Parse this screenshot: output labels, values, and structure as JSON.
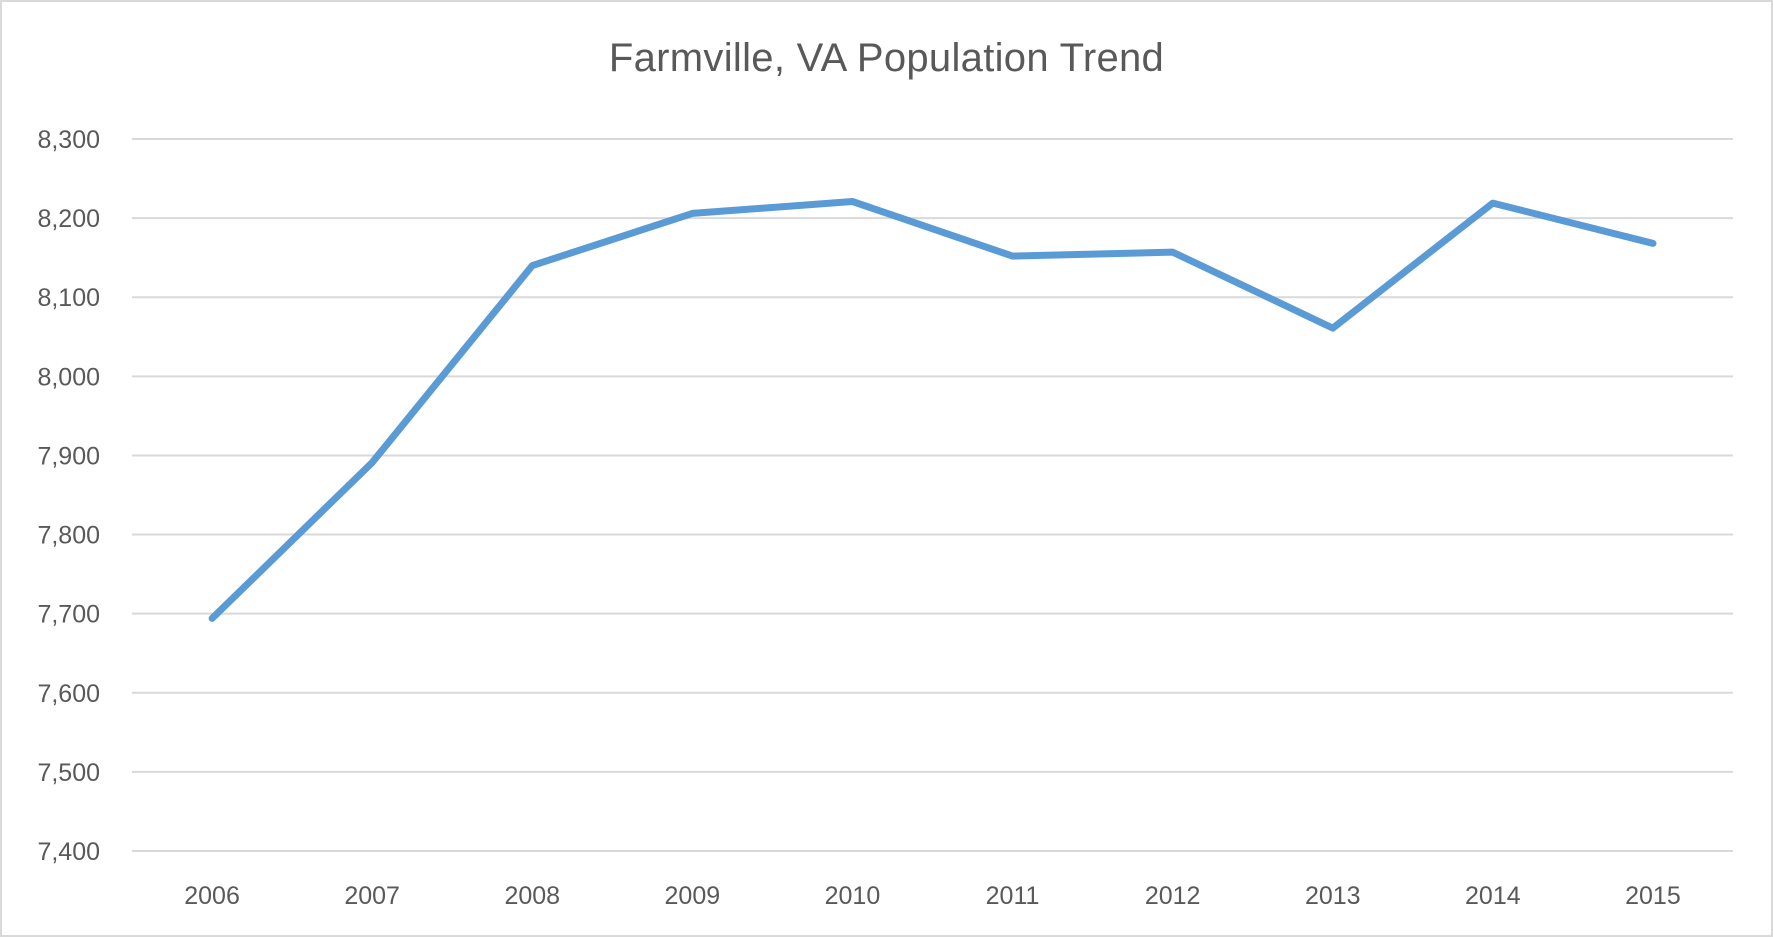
{
  "chart_data": {
    "type": "line",
    "title": "Farmville, VA Population Trend",
    "xlabel": "",
    "ylabel": "",
    "categories": [
      "2006",
      "2007",
      "2008",
      "2009",
      "2010",
      "2011",
      "2012",
      "2013",
      "2014",
      "2015"
    ],
    "series": [
      {
        "name": "Population",
        "color": "#5b9bd5",
        "values": [
          7694,
          7891,
          8140,
          8206,
          8221,
          8152,
          8157,
          8061,
          8219,
          8168
        ]
      }
    ],
    "ylim": [
      7400,
      8300
    ],
    "yticks": [
      7400,
      7500,
      7600,
      7700,
      7800,
      7900,
      8000,
      8100,
      8200,
      8300
    ],
    "ytick_labels": [
      "7,400",
      "7,500",
      "7,600",
      "7,700",
      "7,800",
      "7,900",
      "8,000",
      "8,100",
      "8,200",
      "8,300"
    ],
    "grid": true,
    "legend": null
  },
  "style": {
    "line_color": "#5b9bd5",
    "grid_color": "#d9d9d9",
    "text_color": "#595959",
    "border_color": "#d9d9d9"
  }
}
